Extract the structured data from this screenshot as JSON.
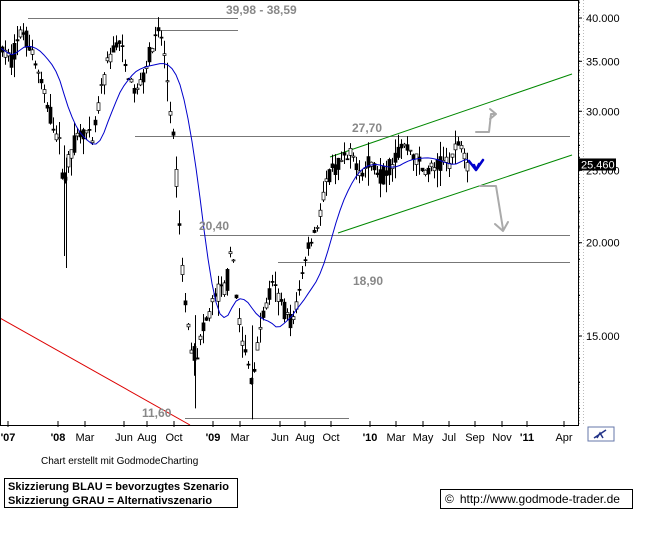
{
  "chart_data": {
    "type": "candlestick",
    "price_axis": {
      "scale": "log",
      "range": [
        11.3,
        45.5
      ],
      "ticks": [
        {
          "value": 40.0,
          "label": "40.000"
        },
        {
          "value": 35.0,
          "label": "35.000"
        },
        {
          "value": 30.0,
          "label": "30.000"
        },
        {
          "value": 25.0,
          "label": "25.000"
        },
        {
          "value": 20.0,
          "label": "20.000"
        },
        {
          "value": 15.0,
          "label": "15.000"
        }
      ]
    },
    "time_axis": {
      "ticks": [
        "'07",
        "'08",
        "Mar",
        "Jun",
        "Aug",
        "Oct",
        "'09",
        "Mar",
        "Jun",
        "Aug",
        "Oct",
        "'10",
        "Mar",
        "May",
        "Jul",
        "Sep",
        "Nov",
        "'11",
        "Apr"
      ]
    },
    "last_price": {
      "value": 25.46,
      "label": "25.460"
    },
    "levels": [
      {
        "label": "39,98 - 38,59",
        "value": 38.59
      },
      {
        "label": "27,70",
        "value": 27.7
      },
      {
        "label": "20,40",
        "value": 20.4
      },
      {
        "label": "18,90",
        "value": 18.9
      },
      {
        "label": "11,60",
        "value": 11.6
      }
    ],
    "series": [
      {
        "name": "moving_average",
        "color": "#0000cc"
      },
      {
        "name": "price",
        "color": "#000000"
      }
    ],
    "trend_channel": {
      "color": "#008800"
    },
    "down_trendline": {
      "color": "#dd0000"
    },
    "scenario_arrows": [
      {
        "scenario": "preferred",
        "color": "#0000cc",
        "direction": "down-up"
      },
      {
        "scenario": "alternative",
        "color": "#aaaaaa",
        "direction": "up"
      },
      {
        "scenario": "alternative",
        "color": "#aaaaaa",
        "direction": "down"
      }
    ]
  },
  "credit": "Chart erstellt mit GodmodeCharting",
  "legend": {
    "line1": "Skizzierung BLAU = bevorzugtes Szenario",
    "line2": "Skizzierung GRAU = Alternativszenario"
  },
  "footer": {
    "copyright_symbol": "©",
    "url": "http://www.godmode-trader.de"
  }
}
